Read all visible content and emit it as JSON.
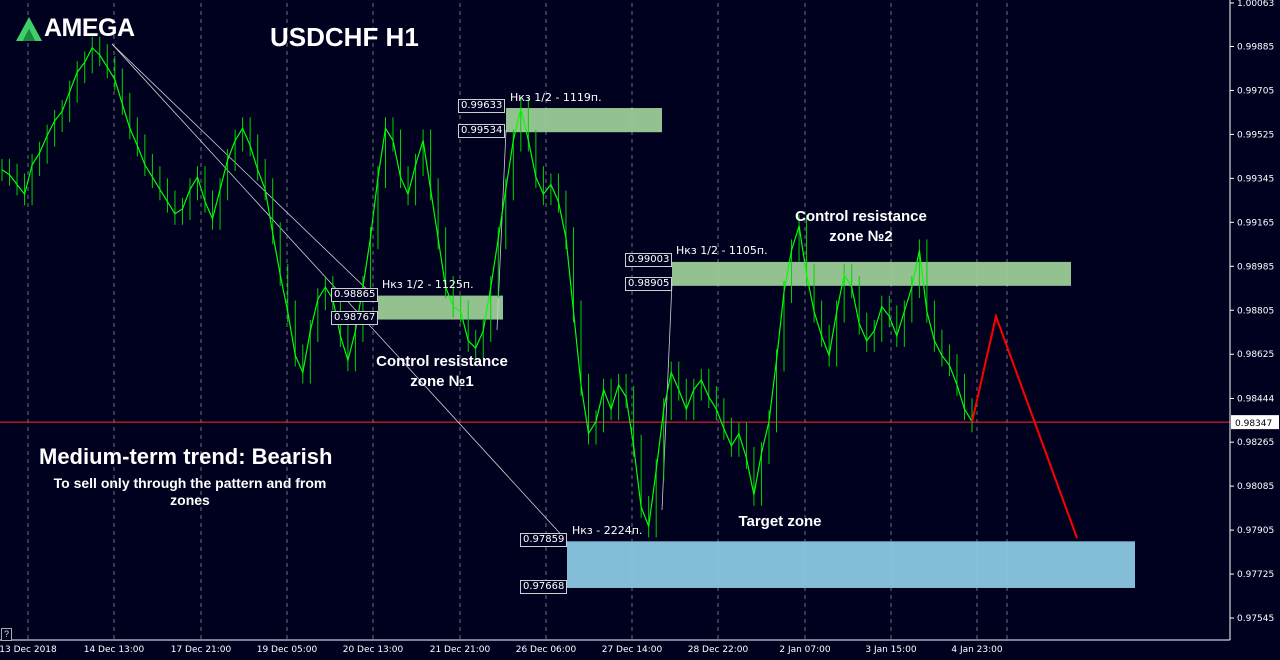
{
  "logo": {
    "text": "AMEGA"
  },
  "chart_data": {
    "type": "line",
    "title": "USDCHF H1",
    "xlabel": "",
    "ylabel": "",
    "ylim": [
      0.97455,
      1.00063
    ],
    "price_ticks": [
      "1.00063",
      "0.99885",
      "0.99705",
      "0.99525",
      "0.99345",
      "0.99165",
      "0.98985",
      "0.98805",
      "0.98625",
      "0.98444",
      "0.98265",
      "0.98085",
      "0.97905",
      "0.97725",
      "0.97545"
    ],
    "time_ticks": [
      "13 Dec 2018",
      "14 Dec 13:00",
      "17 Dec 21:00",
      "19 Dec 05:00",
      "20 Dec 13:00",
      "21 Dec 21:00",
      "26 Dec 06:00",
      "27 Dec 14:00",
      "28 Dec 22:00",
      "2 Jan 07:00",
      "3 Jan 15:00",
      "4 Jan 23:00"
    ],
    "current_price": "0.98347",
    "series": [
      {
        "values": [
          0.9938,
          0.9936,
          0.9932,
          0.9928,
          0.994,
          0.9945,
          0.9952,
          0.9958,
          0.9962,
          0.997,
          0.9978,
          0.9982,
          0.9988,
          0.9985,
          0.998,
          0.9975,
          0.9965,
          0.9955,
          0.9948,
          0.994,
          0.9935,
          0.993,
          0.9925,
          0.992,
          0.9922,
          0.993,
          0.9935,
          0.9925,
          0.9918,
          0.993,
          0.9942,
          0.995,
          0.9955,
          0.9948,
          0.9938,
          0.993,
          0.9912,
          0.9895,
          0.988,
          0.9862,
          0.9855,
          0.9872,
          0.9885,
          0.989,
          0.9885,
          0.987,
          0.986,
          0.9872,
          0.989,
          0.991,
          0.9935,
          0.9955,
          0.995,
          0.9935,
          0.9928,
          0.994,
          0.995,
          0.993,
          0.991,
          0.989,
          0.9882,
          0.988,
          0.9868,
          0.9865,
          0.9872,
          0.989,
          0.991,
          0.993,
          0.995,
          0.9963,
          0.995,
          0.9935,
          0.9928,
          0.9932,
          0.9925,
          0.991,
          0.988,
          0.985,
          0.983,
          0.9835,
          0.9848,
          0.984,
          0.985,
          0.9845,
          0.9825,
          0.98,
          0.9792,
          0.9815,
          0.984,
          0.9855,
          0.9848,
          0.984,
          0.9848,
          0.9852,
          0.9845,
          0.984,
          0.9832,
          0.9825,
          0.983,
          0.982,
          0.9805,
          0.9822,
          0.9835,
          0.986,
          0.9888,
          0.9905,
          0.9915,
          0.9895,
          0.988,
          0.987,
          0.9862,
          0.988,
          0.9895,
          0.989,
          0.9875,
          0.9868,
          0.9872,
          0.9882,
          0.9878,
          0.987,
          0.988,
          0.989,
          0.9905,
          0.988,
          0.9868,
          0.9862,
          0.9858,
          0.985,
          0.984,
          0.9835
        ]
      }
    ],
    "zones": [
      {
        "label": "Нкз 1/2 - 1125п.",
        "top": "0.98865",
        "bottom": "0.98767",
        "top_value": 0.98865,
        "bottom_value": 0.98767,
        "color": "#9fd29a"
      },
      {
        "label": "Нкз 1/2 - 1119п.",
        "top": "0.99633",
        "bottom": "0.99534",
        "top_value": 0.99633,
        "bottom_value": 0.99534,
        "color": "#9fd29a"
      },
      {
        "label": "Нкз 1/2 - 1105п.",
        "top": "0.99003",
        "bottom": "0.98905",
        "top_value": 0.99003,
        "bottom_value": 0.98905,
        "color": "#9fd29a"
      },
      {
        "label": "Нкз - 2224п.",
        "top": "0.97859",
        "bottom": "0.97668",
        "top_value": 0.97859,
        "bottom_value": 0.97668,
        "color": "#8ecde8"
      }
    ],
    "projection": {
      "values": [
        0.98347,
        0.9878,
        0.97872
      ],
      "color": "#ff0000"
    }
  },
  "annotations": {
    "control_zone_1": [
      "Control resistance",
      "zone №1"
    ],
    "control_zone_2": [
      "Control resistance",
      "zone №2"
    ],
    "target_zone": "Target zone",
    "trend_title": "Medium-term trend: Bearish",
    "trend_sub": "To sell only through the pattern and from zones"
  },
  "help_button": "?",
  "colors": {
    "background": "#00001f",
    "candles": "#00e600",
    "grid": "#c8c8c8",
    "current_price_line": "#ff0000"
  }
}
